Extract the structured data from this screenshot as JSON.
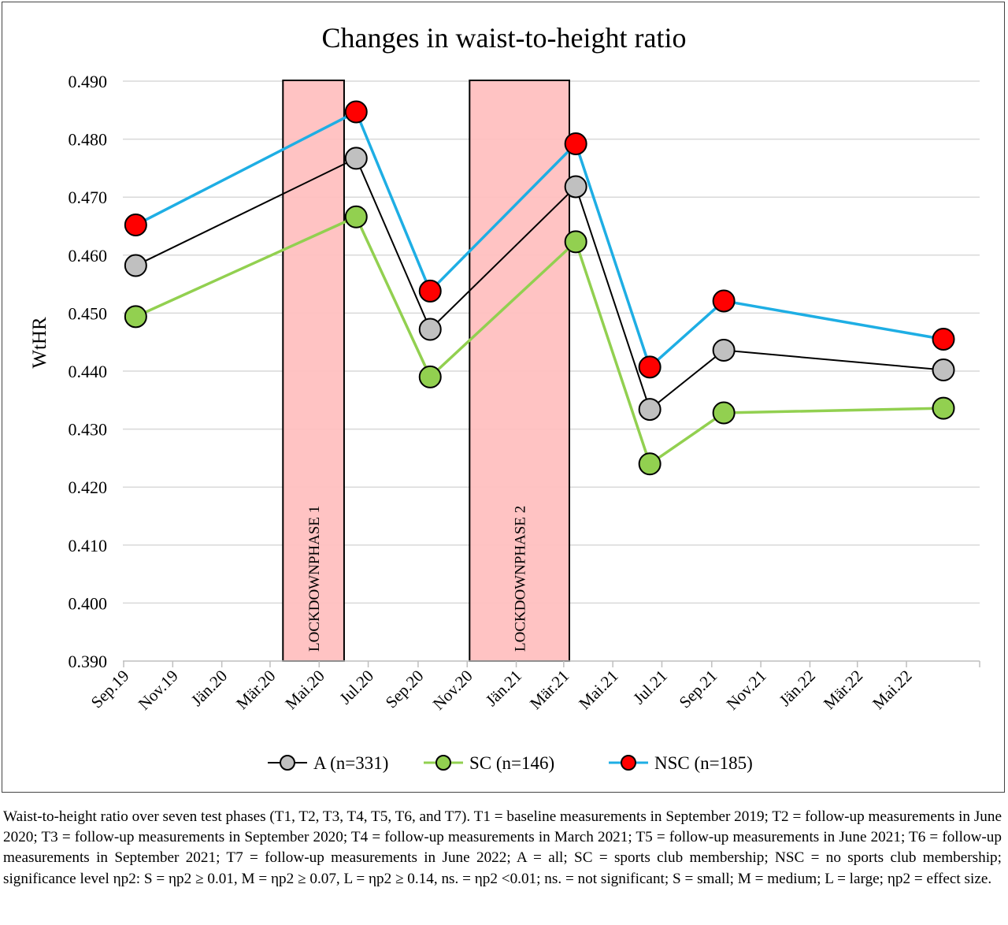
{
  "chart_data": {
    "type": "line",
    "title": "Changes in waist-to-height ratio",
    "ylabel": "WtHR",
    "xlabel": "",
    "ylim": [
      0.39,
      0.49
    ],
    "yticks": [
      "0.390",
      "0.400",
      "0.410",
      "0.420",
      "0.430",
      "0.440",
      "0.450",
      "0.460",
      "0.470",
      "0.480",
      "0.490"
    ],
    "xticks": [
      "Sep.19",
      "Nov.19",
      "Jän.20",
      "Mär.20",
      "Mai.20",
      "Jul.20",
      "Sep.20",
      "Nov.20",
      "Jän.21",
      "Mär.21",
      "Mai.21",
      "Jul.21",
      "Sep.21",
      "Nov.21",
      "Jän.22",
      "Mär.22",
      "Mai.22"
    ],
    "x": [
      "2019-09-15",
      "2020-06-15",
      "2020-09-15",
      "2021-03-15",
      "2021-06-15",
      "2021-09-15",
      "2022-06-15"
    ],
    "series": [
      {
        "name": "A (n=331)",
        "values": [
          0.4582,
          0.4767,
          0.4472,
          0.4718,
          0.4334,
          0.4436,
          0.4402
        ],
        "line_color": "#000000",
        "marker_color": "#c0c0c0"
      },
      {
        "name": "SC (n=146)",
        "values": [
          0.4494,
          0.4666,
          0.439,
          0.4623,
          0.424,
          0.4328,
          0.4336
        ],
        "line_color": "#92d050",
        "marker_color": "#92d050"
      },
      {
        "name": "NSC (n=185)",
        "values": [
          0.4652,
          0.4847,
          0.4538,
          0.4792,
          0.4407,
          0.4521,
          0.4455
        ],
        "line_color": "#1eaee4",
        "marker_color": "#ff0000"
      }
    ],
    "shaded_regions": [
      {
        "label": "LOCKDOWNPHASE 1",
        "start": "2020-03-16",
        "end": "2020-05-31",
        "color": "#ffc0c0"
      },
      {
        "label": "LOCKDOWNPHASE 2",
        "start": "2020-11-03",
        "end": "2021-03-07",
        "color": "#ffc0c0"
      }
    ],
    "grid": true,
    "legend_position": "bottom"
  },
  "caption": "Waist-to-height ratio over seven test phases (T1, T2, T3, T4, T5, T6, and T7). T1 = baseline measurements in September 2019; T2 = follow-up measurements in June 2020; T3 = follow-up measurements in September 2020; T4 = follow-up measurements in March 2021; T5 = follow-up measurements in June 2021; T6 = follow-up measurements in September 2021; T7 = follow-up measurements in June 2022; A = all; SC = sports club membership; NSC = no sports club membership; significance level ηp2: S = ηp2 ≥ 0.01, M = ηp2 ≥ 0.07, L = ηp2 ≥ 0.14, ns. = ηp2 <0.01; ns. = not significant; S = small; M = medium; L = large; ηp2 = effect size."
}
